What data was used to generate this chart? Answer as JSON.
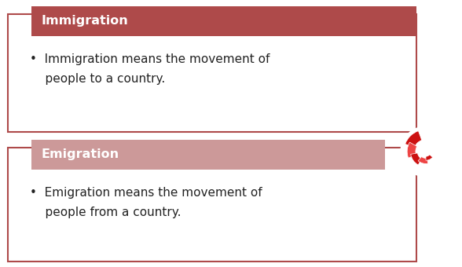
{
  "background_color": "#ffffff",
  "box1_title": "Immigration",
  "box1_title_bg": "#ae4a4a",
  "box1_title_color": "#ffffff",
  "box1_border_color": "#ae4a4a",
  "box1_body_bg": "#ffffff",
  "box1_text": "•  Immigration means the movement of\n    people to a country.",
  "box2_title": "Emigration",
  "box2_title_bg": "#cc9999",
  "box2_title_color": "#ffffff",
  "box2_border_color": "#ae4a4a",
  "box2_body_bg": "#ffffff",
  "box2_text": "•  Emigration means the movement of\n    people from a country.",
  "text_color": "#222222",
  "title_fontsize": 11.5,
  "body_fontsize": 11.0,
  "logo_color1": "#cc1111",
  "logo_color2": "#ee4444"
}
